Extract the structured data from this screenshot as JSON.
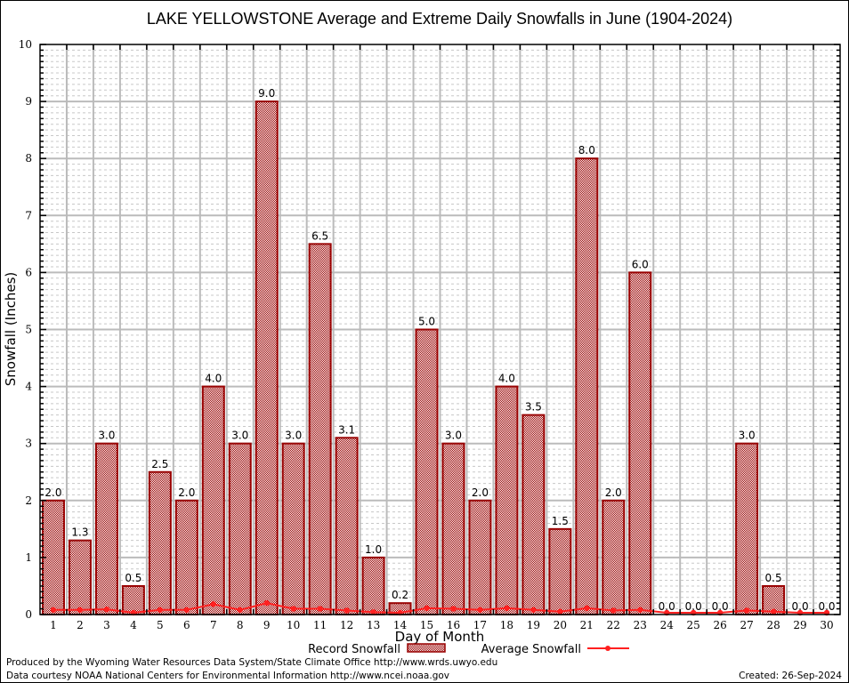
{
  "chart_data": {
    "type": "bar",
    "title": "LAKE YELLOWSTONE Average and Extreme Daily Snowfalls in June (1904-2024)",
    "xlabel": "Day of Month",
    "ylabel": "Snowfall (Inches)",
    "ylim": [
      0,
      10
    ],
    "yticks": [
      0,
      1,
      2,
      3,
      4,
      5,
      6,
      7,
      8,
      9,
      10
    ],
    "minor_ystep": 0.1,
    "grid": true,
    "categories": [
      "1",
      "2",
      "3",
      "4",
      "5",
      "6",
      "7",
      "8",
      "9",
      "10",
      "11",
      "12",
      "13",
      "14",
      "15",
      "16",
      "17",
      "18",
      "19",
      "20",
      "21",
      "22",
      "23",
      "24",
      "25",
      "26",
      "27",
      "28",
      "29",
      "30"
    ],
    "series": [
      {
        "name": "Record Snowfall",
        "type": "bar",
        "color": "#990000",
        "values": [
          2.0,
          1.3,
          3.0,
          0.5,
          2.5,
          2.0,
          4.0,
          3.0,
          9.0,
          3.0,
          6.5,
          3.1,
          1.0,
          0.2,
          5.0,
          3.0,
          2.0,
          4.0,
          3.5,
          1.5,
          8.0,
          2.0,
          6.0,
          0.0,
          0.0,
          0.0,
          3.0,
          0.5,
          0.0,
          0.0
        ],
        "labels": [
          "2.0",
          "1.3",
          "3.0",
          "0.5",
          "2.5",
          "2.0",
          "4.0",
          "3.0",
          "9.0",
          "3.0",
          "6.5",
          "3.1",
          "1.0",
          "0.2",
          "5.0",
          "3.0",
          "2.0",
          "4.0",
          "3.5",
          "1.5",
          "8.0",
          "2.0",
          "6.0",
          "0.0",
          "0.0",
          "0.0",
          "3.0",
          "0.5",
          "0.0",
          "0.0"
        ]
      },
      {
        "name": "Average Snowfall",
        "type": "line",
        "color": "#ff2020",
        "values": [
          0.05,
          0.05,
          0.06,
          0.0,
          0.05,
          0.05,
          0.15,
          0.05,
          0.17,
          0.07,
          0.07,
          0.04,
          0.01,
          0.0,
          0.08,
          0.07,
          0.05,
          0.08,
          0.05,
          0.02,
          0.08,
          0.04,
          0.05,
          0.0,
          0.0,
          0.0,
          0.04,
          0.02,
          0.0,
          0.0
        ]
      }
    ],
    "legend": {
      "position": "bottom-center",
      "items": [
        "Record Snowfall",
        "Average Snowfall"
      ]
    }
  },
  "footer": {
    "line1": "Produced by the Wyoming Water Resources Data System/State Climate Office http://www.wrds.uwyo.edu",
    "line2": "Data courtesy NOAA National Centers for Environmental Information http://www.ncei.noaa.gov",
    "created": "Created:  26-Sep-2024"
  }
}
